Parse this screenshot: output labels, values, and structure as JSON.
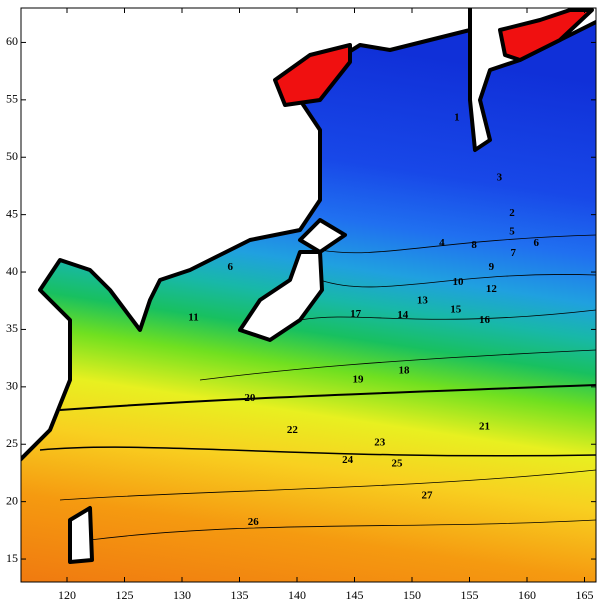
{
  "chart_data": {
    "type": "contour-map",
    "xlim": [
      116,
      166
    ],
    "ylim": [
      13,
      63
    ],
    "xticks": [
      120,
      125,
      130,
      135,
      140,
      145,
      150,
      155,
      160,
      165
    ],
    "yticks": [
      15,
      20,
      25,
      30,
      35,
      40,
      45,
      50,
      55,
      60
    ],
    "contour_labels": [
      {
        "value": 1,
        "lon": 153.9,
        "lat": 53.4
      },
      {
        "value": 3,
        "lon": 157.6,
        "lat": 48.2
      },
      {
        "value": 2,
        "lon": 158.7,
        "lat": 45.1
      },
      {
        "value": 5,
        "lon": 158.7,
        "lat": 43.5
      },
      {
        "value": 6,
        "lon": 160.8,
        "lat": 42.5
      },
      {
        "value": 8,
        "lon": 155.4,
        "lat": 42.3
      },
      {
        "value": 4,
        "lon": 152.6,
        "lat": 42.5
      },
      {
        "value": 7,
        "lon": 158.8,
        "lat": 41.6
      },
      {
        "value": 9,
        "lon": 156.9,
        "lat": 40.4
      },
      {
        "value": 10,
        "lon": 154,
        "lat": 39.1
      },
      {
        "value": 12,
        "lon": 156.9,
        "lat": 38.5
      },
      {
        "value": 13,
        "lon": 150.9,
        "lat": 37.5
      },
      {
        "value": 14,
        "lon": 149.2,
        "lat": 36.2
      },
      {
        "value": 15,
        "lon": 153.8,
        "lat": 36.7
      },
      {
        "value": 16,
        "lon": 156.3,
        "lat": 35.8
      },
      {
        "value": 17,
        "lon": 145.1,
        "lat": 36.3
      },
      {
        "value": 11,
        "lon": 131,
        "lat": 36
      },
      {
        "value": 18,
        "lon": 149.3,
        "lat": 31.4
      },
      {
        "value": 19,
        "lon": 145.3,
        "lat": 30.6
      },
      {
        "value": 20,
        "lon": 135.9,
        "lat": 29
      },
      {
        "value": 21,
        "lon": 156.3,
        "lat": 26.5
      },
      {
        "value": 22,
        "lon": 139.6,
        "lat": 26.2
      },
      {
        "value": 23,
        "lon": 147.2,
        "lat": 25.1
      },
      {
        "value": 24,
        "lon": 144.4,
        "lat": 23.6
      },
      {
        "value": 25,
        "lon": 148.7,
        "lat": 23.3
      },
      {
        "value": 26,
        "lon": 136.2,
        "lat": 18.2
      },
      {
        "value": 27,
        "lon": 151.3,
        "lat": 20.5
      },
      {
        "value": 6,
        "lon": 134.2,
        "lat": 40.4
      }
    ]
  }
}
